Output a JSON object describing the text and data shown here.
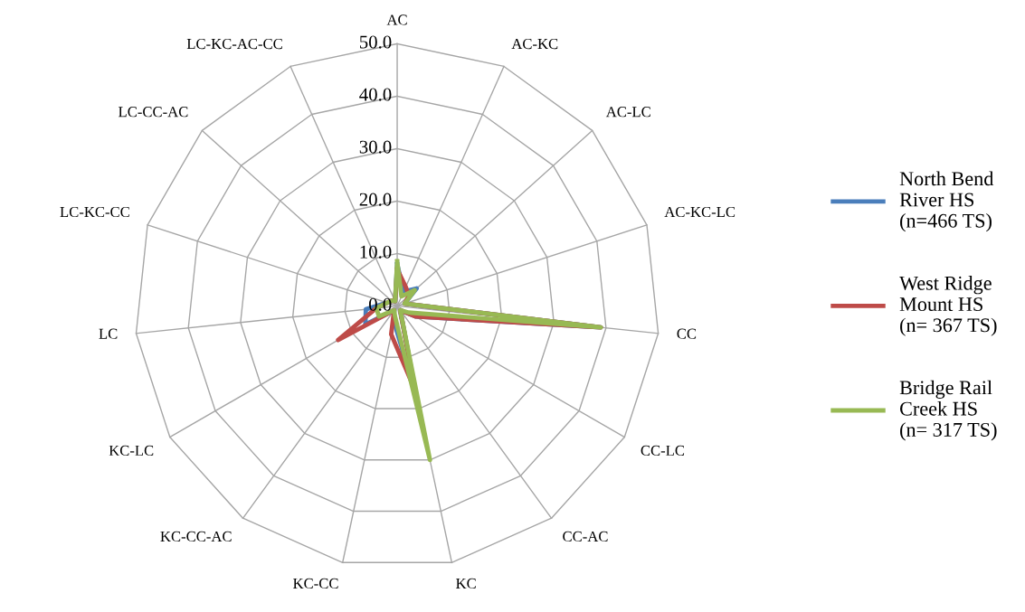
{
  "chart_data": {
    "type": "radar",
    "categories": [
      "AC",
      "AC-KC",
      "AC-LC",
      "AC-KC-LC",
      "CC",
      "CC-LC",
      "CC-AC",
      "KC",
      "KC-CC",
      "KC-CC-AC",
      "KC-LC",
      "LC",
      "LC-KC-CC",
      "LC-CC-AC",
      "LC-KC-AC-CC"
    ],
    "series": [
      {
        "name": "North Bend River HS (n=466 TS)",
        "color": "#4a7ebb",
        "values": [
          8,
          3,
          5,
          1.5,
          39,
          4,
          1,
          18,
          3,
          1,
          7,
          6,
          2,
          1.5,
          1
        ]
      },
      {
        "name": "West Ridge Mount HS (n= 367 TS)",
        "color": "#be4b48",
        "values": [
          7,
          4,
          3,
          1.5,
          39,
          4,
          1,
          16.5,
          5.5,
          1,
          13,
          4,
          2,
          1.5,
          1
        ]
      },
      {
        "name": "Bridge Rail Creek HS (n= 317 TS)",
        "color": "#98b954",
        "values": [
          8.5,
          2,
          4.5,
          1.5,
          39,
          2.5,
          1,
          30,
          2,
          1,
          4,
          4,
          2,
          1.5,
          1
        ]
      }
    ],
    "ylim": [
      0,
      50
    ],
    "yticks": [
      {
        "value": 0,
        "label": "0.0"
      },
      {
        "value": 10,
        "label": "10.0"
      },
      {
        "value": 20,
        "label": "20.0"
      },
      {
        "value": 30,
        "label": "30.0"
      },
      {
        "value": 40,
        "label": "40.0"
      },
      {
        "value": 50,
        "label": "50.0"
      }
    ],
    "grid": true,
    "legend": "right"
  }
}
